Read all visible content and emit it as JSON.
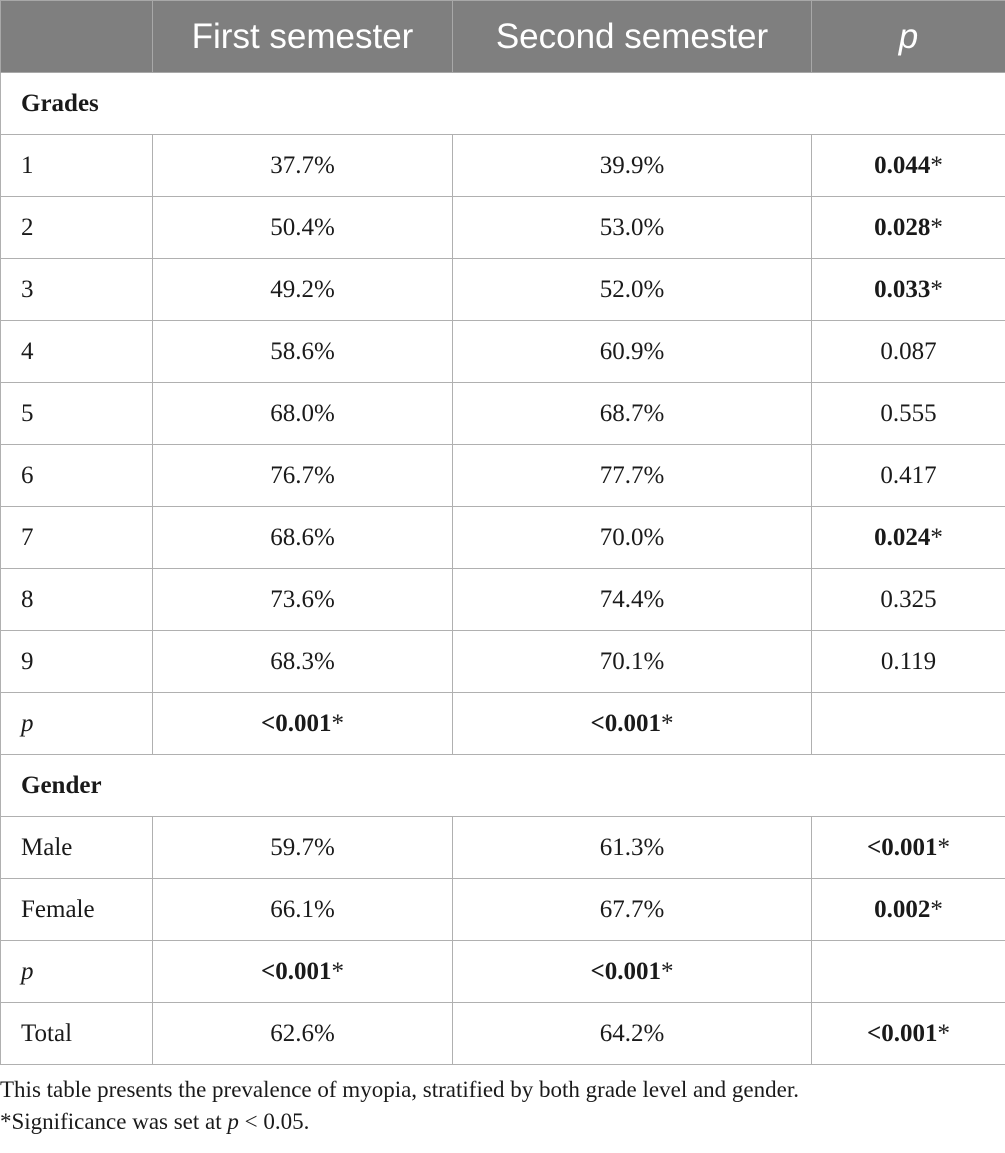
{
  "table": {
    "headers": [
      "",
      "First semester",
      "Second semester",
      "p"
    ],
    "sections": [
      {
        "title": "Grades",
        "rows": [
          {
            "label": "1",
            "first": "37.7%",
            "second": "39.9%",
            "p_value": "0.044",
            "p_mark": "*",
            "sig": true
          },
          {
            "label": "2",
            "first": "50.4%",
            "second": "53.0%",
            "p_value": "0.028",
            "p_mark": "*",
            "sig": true
          },
          {
            "label": "3",
            "first": "49.2%",
            "second": "52.0%",
            "p_value": "0.033",
            "p_mark": "*",
            "sig": true
          },
          {
            "label": "4",
            "first": "58.6%",
            "second": "60.9%",
            "p_value": "0.087",
            "p_mark": "",
            "sig": false
          },
          {
            "label": "5",
            "first": "68.0%",
            "second": "68.7%",
            "p_value": "0.555",
            "p_mark": "",
            "sig": false
          },
          {
            "label": "6",
            "first": "76.7%",
            "second": "77.7%",
            "p_value": "0.417",
            "p_mark": "",
            "sig": false
          },
          {
            "label": "7",
            "first": "68.6%",
            "second": "70.0%",
            "p_value": "0.024",
            "p_mark": "*",
            "sig": true
          },
          {
            "label": "8",
            "first": "73.6%",
            "second": "74.4%",
            "p_value": "0.325",
            "p_mark": "",
            "sig": false
          },
          {
            "label": "9",
            "first": "68.3%",
            "second": "70.1%",
            "p_value": "0.119",
            "p_mark": "",
            "sig": false
          }
        ],
        "p_row": {
          "label": "p",
          "first_value": "<0.001",
          "first_mark": "*",
          "second_value": "<0.001",
          "second_mark": "*"
        }
      },
      {
        "title": "Gender",
        "rows": [
          {
            "label": "Male",
            "first": "59.7%",
            "second": "61.3%",
            "p_value": "<0.001",
            "p_mark": "*",
            "sig": true
          },
          {
            "label": "Female",
            "first": "66.1%",
            "second": "67.7%",
            "p_value": "0.002",
            "p_mark": "*",
            "sig": true
          }
        ],
        "p_row": {
          "label": "p",
          "first_value": "<0.001",
          "first_mark": "*",
          "second_value": "<0.001",
          "second_mark": "*"
        }
      }
    ],
    "total": {
      "label": "Total",
      "first": "62.6%",
      "second": "64.2%",
      "p_value": "<0.001",
      "p_mark": "*",
      "sig": true
    }
  },
  "footnotes": {
    "description": "This table presents the prevalence of myopia, stratified by both grade level and gender.",
    "significance_prefix": "*Significance was set at ",
    "significance_var": "p",
    "significance_suffix": " < 0.05."
  }
}
